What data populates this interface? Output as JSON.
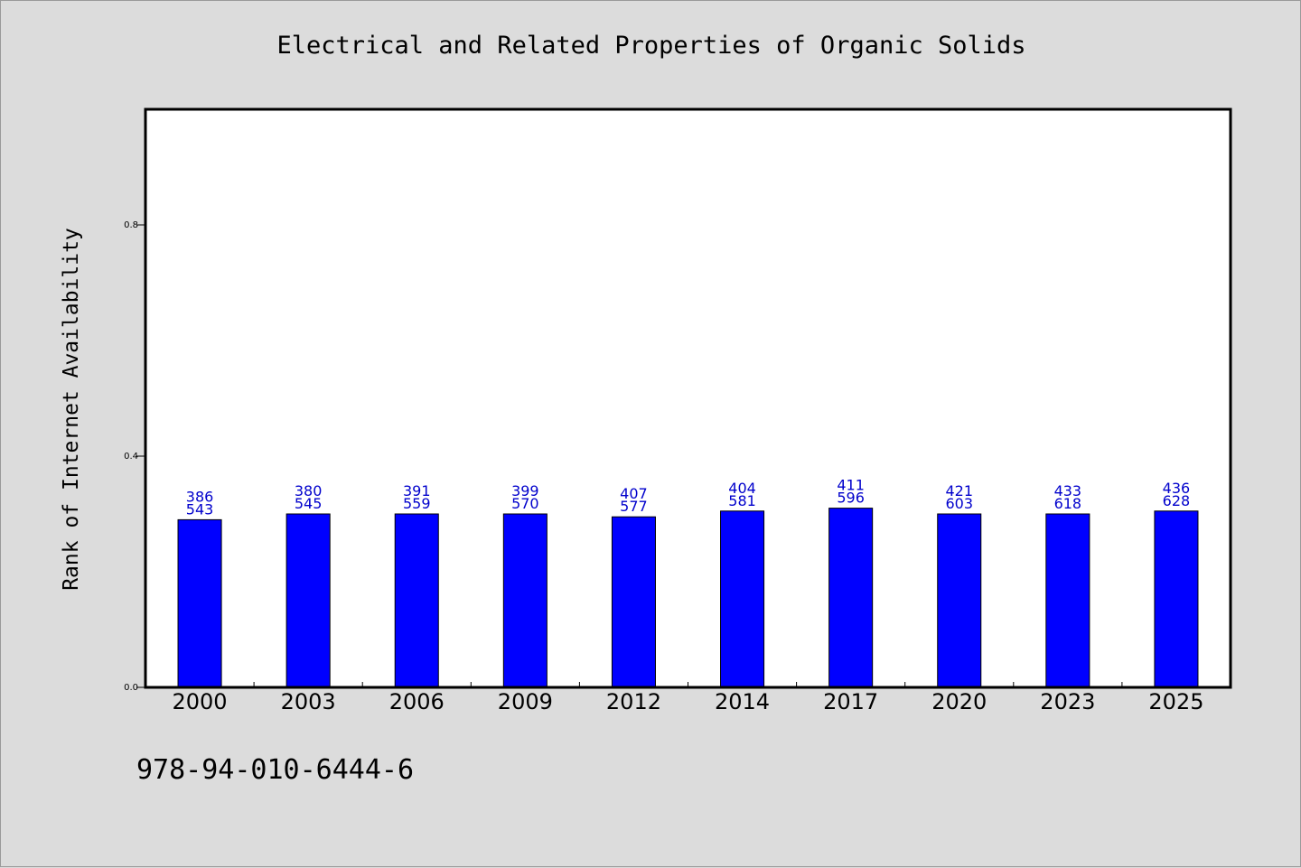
{
  "chart_data": {
    "type": "bar",
    "title": "Electrical and Related Properties of Organic Solids",
    "xlabel": "",
    "ylabel": "Rank of Internet Availability",
    "categories": [
      "2000",
      "2003",
      "2006",
      "2009",
      "2012",
      "2014",
      "2017",
      "2020",
      "2023",
      "2025"
    ],
    "values": [
      0.29,
      0.3,
      0.3,
      0.3,
      0.295,
      0.305,
      0.31,
      0.3,
      0.3,
      0.305
    ],
    "annotations_top": [
      "386",
      "380",
      "391",
      "399",
      "407",
      "404",
      "411",
      "421",
      "433",
      "436"
    ],
    "annotations_bottom": [
      "543",
      "545",
      "559",
      "570",
      "577",
      "581",
      "596",
      "603",
      "618",
      "628"
    ],
    "ylim": [
      0.0,
      1.0
    ],
    "yticks": [
      "0.0",
      "0.4",
      "0.8"
    ],
    "grid": false,
    "bar_color": "#0000ff",
    "label_color": "#0000cc",
    "plot_background": "#ffffff",
    "page_background": "#dcdcdc"
  },
  "footer": {
    "id_text": "978-94-010-6444-6"
  }
}
